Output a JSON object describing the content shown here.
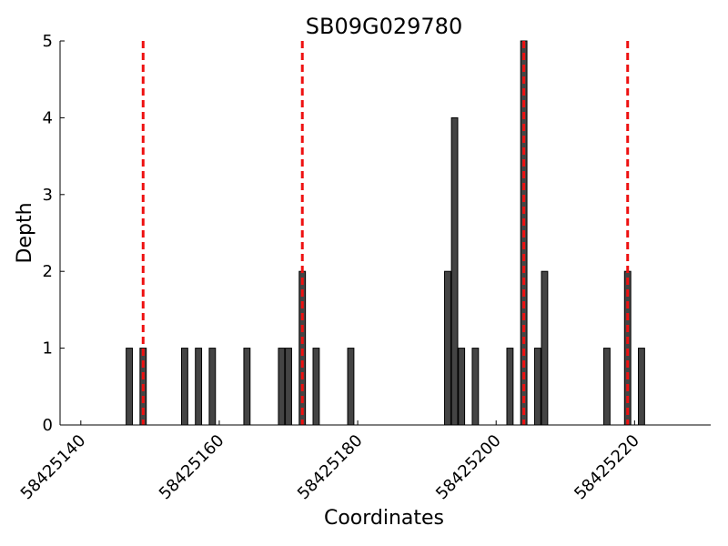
{
  "chart_data": {
    "type": "bar",
    "title": "SB09G029780",
    "x_label": "Coordinates",
    "y_label": "Depth",
    "x": [
      58425147,
      58425149,
      58425155,
      58425157,
      58425159,
      58425164,
      58425169,
      58425170,
      58425172,
      58425174,
      58425179,
      58425193,
      58425194,
      58425195,
      58425197,
      58425202,
      58425204,
      58425206,
      58425207,
      58425216,
      58425219,
      58425221
    ],
    "values": [
      1,
      1,
      1,
      1,
      1,
      1,
      1,
      1,
      2,
      1,
      1,
      2,
      4,
      1,
      1,
      1,
      5,
      1,
      2,
      1,
      2,
      1
    ],
    "color": "#444444",
    "vlines": {
      "x": [
        58425149,
        58425172,
        58425204,
        58425219
      ],
      "color": "#ee1111"
    },
    "xlim": [
      58425137,
      58425231
    ],
    "xticks": [
      58425140,
      58425160,
      58425180,
      58425200,
      58425220
    ],
    "ylim": [
      0,
      5
    ],
    "yticks": [
      0,
      1,
      2,
      3,
      4,
      5
    ]
  }
}
